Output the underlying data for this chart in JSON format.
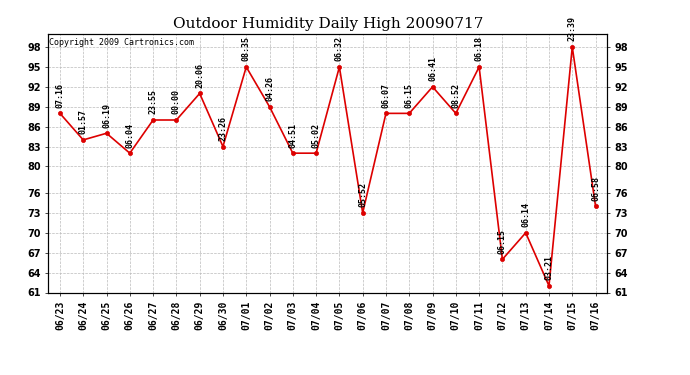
{
  "title": "Outdoor Humidity Daily High 20090717",
  "copyright": "Copyright 2009 Cartronics.com",
  "x_labels": [
    "06/23",
    "06/24",
    "06/25",
    "06/26",
    "06/27",
    "06/28",
    "06/29",
    "06/30",
    "07/01",
    "07/02",
    "07/03",
    "07/04",
    "07/05",
    "07/06",
    "07/07",
    "07/08",
    "07/09",
    "07/10",
    "07/11",
    "07/12",
    "07/13",
    "07/14",
    "07/15",
    "07/16"
  ],
  "y_values": [
    88,
    84,
    85,
    82,
    87,
    87,
    91,
    83,
    95,
    89,
    82,
    82,
    95,
    73,
    88,
    88,
    92,
    88,
    95,
    66,
    70,
    62,
    98,
    74
  ],
  "point_labels": [
    "07:16",
    "01:57",
    "06:19",
    "06:04",
    "23:55",
    "00:00",
    "20:06",
    "23:26",
    "08:35",
    "04:26",
    "04:51",
    "05:02",
    "06:32",
    "05:52",
    "06:07",
    "06:15",
    "06:41",
    "08:52",
    "06:18",
    "06:15",
    "06:14",
    "03:21",
    "23:39",
    "06:58"
  ],
  "line_color": "#dd0000",
  "marker_color": "#dd0000",
  "bg_color": "#ffffff",
  "grid_color": "#bbbbbb",
  "ylim_min": 61,
  "ylim_max": 100,
  "yticks": [
    61,
    64,
    67,
    70,
    73,
    76,
    80,
    83,
    86,
    89,
    92,
    95,
    98
  ],
  "title_fontsize": 11,
  "tick_fontsize": 7,
  "annot_fontsize": 6,
  "copyright_fontsize": 6
}
